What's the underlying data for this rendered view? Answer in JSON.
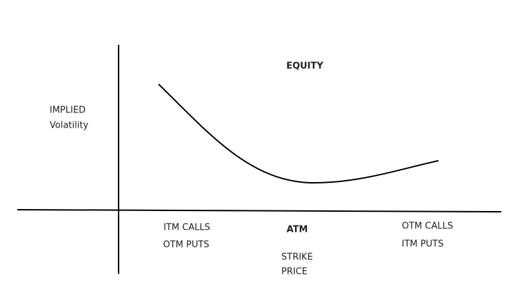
{
  "title": "EQUITY",
  "y_axis_label": [
    "IMPLIED",
    "Volatility"
  ],
  "x_labels": [
    {
      "lines": [
        "ITM CALLS",
        "OTM PUTS"
      ]
    },
    {
      "lines": [
        "ATM"
      ]
    },
    {
      "lines": [
        "OTM CALLS",
        "ITM PUTS"
      ]
    }
  ],
  "x_axis_label": [
    "STRIKE",
    "PRICE"
  ]
}
